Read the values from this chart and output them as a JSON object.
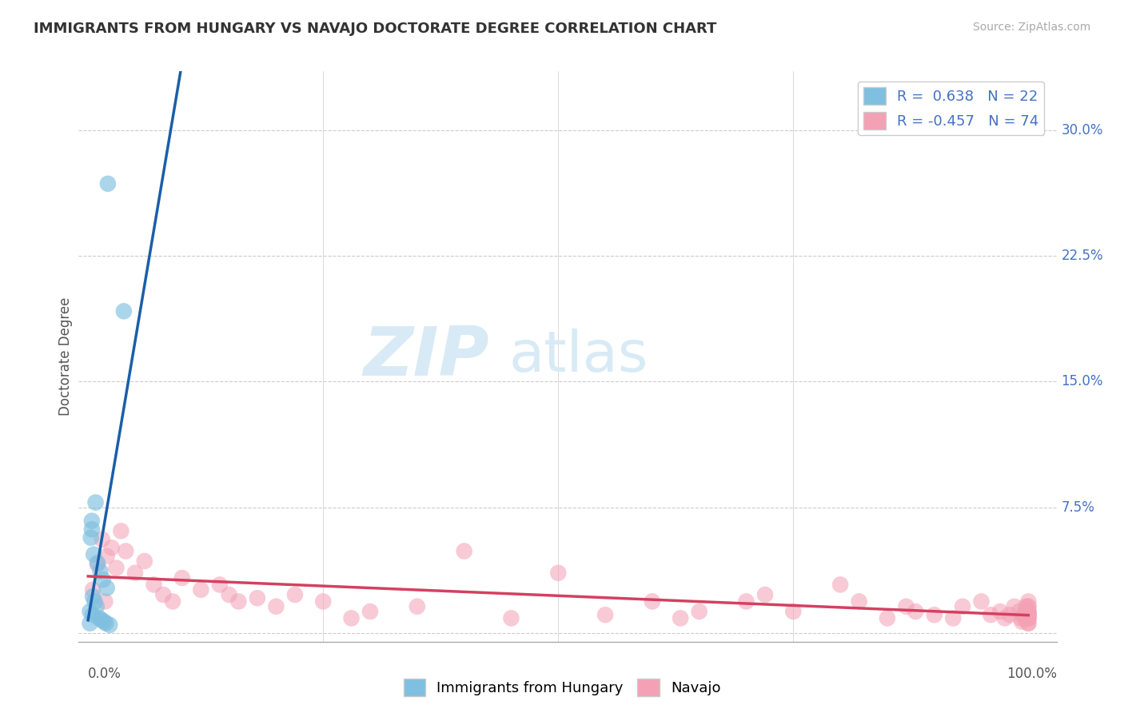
{
  "title": "IMMIGRANTS FROM HUNGARY VS NAVAJO DOCTORATE DEGREE CORRELATION CHART",
  "source": "Source: ZipAtlas.com",
  "ylabel": "Doctorate Degree",
  "xlim": [
    -0.01,
    1.03
  ],
  "ylim": [
    -0.005,
    0.335
  ],
  "yticks": [
    0.0,
    0.075,
    0.15,
    0.225,
    0.3
  ],
  "ytick_labels": [
    "",
    "7.5%",
    "15.0%",
    "22.5%",
    "30.0%"
  ],
  "blue_scatter_x": [
    0.021,
    0.038,
    0.008,
    0.004,
    0.003,
    0.006,
    0.01,
    0.013,
    0.016,
    0.02,
    0.004,
    0.005,
    0.007,
    0.009,
    0.002,
    0.005,
    0.012,
    0.014,
    0.017,
    0.019,
    0.023,
    0.002
  ],
  "blue_scatter_y": [
    0.268,
    0.192,
    0.078,
    0.067,
    0.057,
    0.047,
    0.042,
    0.037,
    0.032,
    0.027,
    0.062,
    0.022,
    0.019,
    0.016,
    0.013,
    0.011,
    0.009,
    0.008,
    0.007,
    0.006,
    0.005,
    0.006
  ],
  "pink_scatter_x": [
    0.005,
    0.01,
    0.015,
    0.018,
    0.02,
    0.025,
    0.03,
    0.035,
    0.04,
    0.05,
    0.06,
    0.07,
    0.08,
    0.09,
    0.1,
    0.12,
    0.14,
    0.15,
    0.16,
    0.18,
    0.2,
    0.22,
    0.25,
    0.28,
    0.3,
    0.35,
    0.4,
    0.45,
    0.5,
    0.55,
    0.6,
    0.63,
    0.65,
    0.7,
    0.72,
    0.75,
    0.8,
    0.82,
    0.85,
    0.87,
    0.88,
    0.9,
    0.92,
    0.93,
    0.95,
    0.96,
    0.97,
    0.975,
    0.98,
    0.985,
    0.99,
    0.992,
    0.993,
    0.995,
    0.996,
    0.997,
    0.998,
    0.999,
    1.0,
    1.0,
    1.0,
    1.0,
    1.0,
    1.0,
    1.0,
    1.0,
    1.0,
    1.0,
    1.0,
    1.0,
    1.0,
    1.0,
    1.0,
    1.0
  ],
  "pink_scatter_y": [
    0.026,
    0.041,
    0.056,
    0.019,
    0.046,
    0.051,
    0.039,
    0.061,
    0.049,
    0.036,
    0.043,
    0.029,
    0.023,
    0.019,
    0.033,
    0.026,
    0.029,
    0.023,
    0.019,
    0.021,
    0.016,
    0.023,
    0.019,
    0.009,
    0.013,
    0.016,
    0.049,
    0.009,
    0.036,
    0.011,
    0.019,
    0.009,
    0.013,
    0.019,
    0.023,
    0.013,
    0.029,
    0.019,
    0.009,
    0.016,
    0.013,
    0.011,
    0.009,
    0.016,
    0.019,
    0.011,
    0.013,
    0.009,
    0.011,
    0.016,
    0.013,
    0.009,
    0.007,
    0.011,
    0.009,
    0.016,
    0.013,
    0.009,
    0.011,
    0.013,
    0.009,
    0.016,
    0.019,
    0.011,
    0.006,
    0.013,
    0.009,
    0.016,
    0.011,
    0.009,
    0.013,
    0.006,
    0.011,
    0.009
  ],
  "blue_dot_color": "#7fbfdf",
  "pink_dot_color": "#f4a0b5",
  "blue_line_color": "#1a5fa8",
  "pink_line_color": "#d44060",
  "background_color": "#ffffff",
  "grid_color": "#cccccc",
  "title_color": "#333333",
  "axis_label_color": "#555555",
  "right_tick_color": "#4472c4",
  "watermark_color": "#d8eaf5",
  "legend_label_color": "#4472c4"
}
